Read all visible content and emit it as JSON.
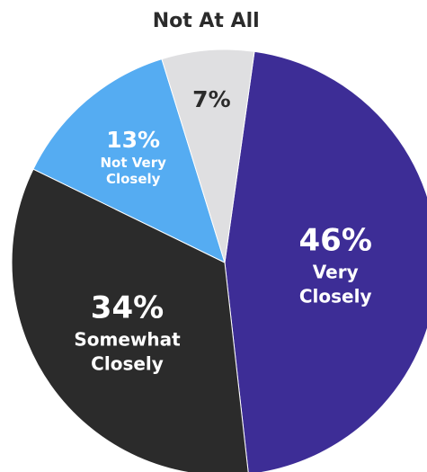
{
  "chart_data": {
    "type": "pie",
    "title": "",
    "start_angle_deg": 8,
    "direction": "clockwise",
    "slices": [
      {
        "label": "Very Closely",
        "label_lines": [
          "Very",
          "Closely"
        ],
        "percent_label": "46%",
        "value": 46,
        "color": "#3d2d96",
        "text_color": "#ffffff",
        "label_position": "inside"
      },
      {
        "label": "Somewhat Closely",
        "label_lines": [
          "Somewhat",
          "Closely"
        ],
        "percent_label": "34%",
        "value": 34,
        "color": "#2b2b2b",
        "text_color": "#ffffff",
        "label_position": "inside"
      },
      {
        "label": "Not Very Closely",
        "label_lines": [
          "Not Very",
          "Closely"
        ],
        "percent_label": "13%",
        "value": 13,
        "color": "#55acf2",
        "text_color": "#ffffff",
        "label_position": "inside"
      },
      {
        "label": "Not At All",
        "label_lines": [],
        "percent_label": "7%",
        "value": 7,
        "color": "#dfdfe1",
        "text_color": "#2b2b2b",
        "label_position": "outside-top",
        "external_label": "Not At All"
      }
    ]
  }
}
